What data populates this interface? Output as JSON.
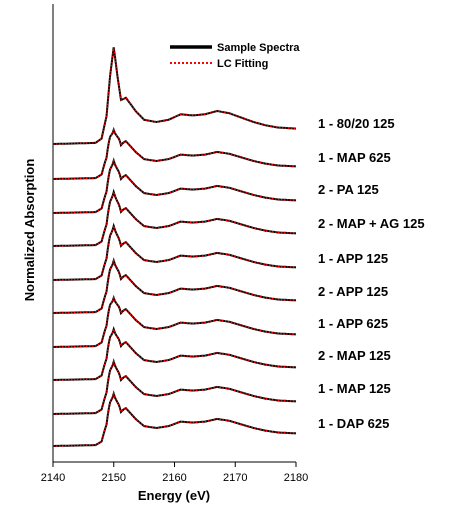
{
  "chart_data": {
    "type": "line",
    "xlabel": "Energy (eV)",
    "ylabel": "Normalized Absorption",
    "xlim": [
      2140,
      2180
    ],
    "xticks": [
      2140,
      2150,
      2160,
      2170,
      2180
    ],
    "grid": false,
    "legend": {
      "placement": "top-center",
      "entries": [
        {
          "name": "Sample Spectra",
          "style": "solid",
          "color": "#000000"
        },
        {
          "name": "LC Fitting",
          "style": "dotted",
          "color": "#ff0000"
        }
      ]
    },
    "samples": [
      {
        "label": "1 - 80/20 125",
        "whiteline": 1.0
      },
      {
        "label": "1 - MAP 625",
        "whiteline": 0.62
      },
      {
        "label": "2 - PA 125",
        "whiteline": 0.66
      },
      {
        "label": "2 - MAP + AG 125",
        "whiteline": 0.68
      },
      {
        "label": "1 - APP 125",
        "whiteline": 0.68
      },
      {
        "label": "2 - APP 125",
        "whiteline": 0.66
      },
      {
        "label": "1 - APP 625",
        "whiteline": 0.62
      },
      {
        "label": "2 - MAP 125",
        "whiteline": 0.64
      },
      {
        "label": "1 - MAP 125",
        "whiteline": 0.66
      },
      {
        "label": "1 - DAP 625",
        "whiteline": 0.66
      }
    ],
    "profile_x": [
      2140,
      2147,
      2148,
      2148.8,
      2149.4,
      2150,
      2150.6,
      2151.2,
      2152,
      2152.8,
      2153.6,
      2155,
      2157,
      2159,
      2161,
      2163,
      2165,
      2167,
      2169,
      2171,
      2173,
      2175,
      2177,
      2180
    ],
    "profile_y": [
      0,
      0.01,
      0.05,
      0.25,
      0.62,
      0.88,
      0.62,
      0.4,
      0.42,
      0.36,
      0.3,
      0.22,
      0.2,
      0.22,
      0.27,
      0.26,
      0.27,
      0.3,
      0.28,
      0.24,
      0.2,
      0.17,
      0.15,
      0.14
    ]
  }
}
